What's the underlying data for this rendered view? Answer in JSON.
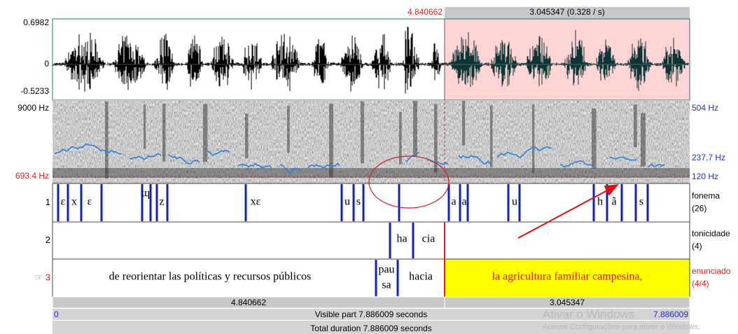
{
  "top_bar": {
    "cursor_time": "4.840662",
    "selection_duration": "3.045347 (0.328 / s)"
  },
  "waveform": {
    "max": "0.6982",
    "zero": "0",
    "min": "-0.5233"
  },
  "spectrogram": {
    "max_freq": "9000 Hz",
    "cursor_freq": "693.4 Hz",
    "pitch_max": "504 Hz",
    "pitch_cursor": "237.7 Hz",
    "pitch_min": "120 Hz"
  },
  "tiers": [
    {
      "number": "1",
      "name": "fonema",
      "count": "(26)",
      "labels": [
        "ε",
        "x",
        "ε",
        "ɰ",
        "z",
        "xε",
        "u",
        "s",
        "a",
        "a",
        "u",
        "h",
        "ã",
        "s"
      ]
    },
    {
      "number": "2",
      "name": "tonicidade",
      "count": "(4)",
      "labels": [
        "ha",
        "cia"
      ]
    },
    {
      "number": "☞ 3",
      "name": "enunciado",
      "count": "(4/4)",
      "labels": [
        "de reorientar las políticas y recursos públicos",
        "pau",
        "sa",
        "hacia",
        "la agricultura familiar campesina,"
      ]
    }
  ],
  "bottom_bar": {
    "left_part": "4.840662",
    "right_part": "3.045347",
    "visible_start": "0",
    "visible_part": "Visible part 7.886009 seconds",
    "visible_end": "7.886009",
    "total_duration": "Total duration 7.886009 seconds"
  },
  "watermark": {
    "title": "Ativar o Windows",
    "subtitle": "Acesse Configurações para ativar o Windows."
  }
}
